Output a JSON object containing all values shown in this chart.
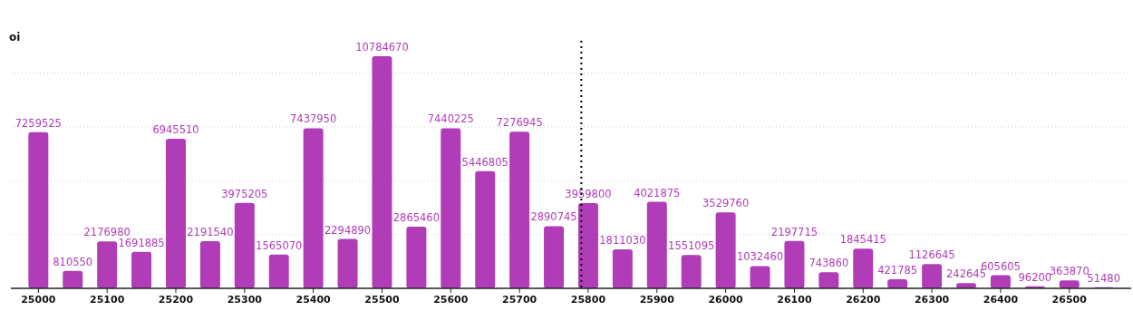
{
  "chart_data": {
    "type": "bar",
    "ylabel": "oi",
    "x": [
      25000,
      25050,
      25100,
      25150,
      25200,
      25250,
      25300,
      25350,
      25400,
      25450,
      25500,
      25550,
      25600,
      25650,
      25700,
      25750,
      25800,
      25850,
      25900,
      25950,
      26000,
      26050,
      26100,
      26150,
      26200,
      26250,
      26300,
      26350,
      26400,
      26450,
      26500,
      26550
    ],
    "values": [
      7259525,
      810550,
      2176980,
      1691885,
      6945510,
      2191540,
      3975205,
      1565070,
      7437950,
      2294890,
      10784670,
      2865460,
      7440225,
      5446805,
      7276945,
      2890745,
      3959800,
      1811030,
      4021875,
      1551095,
      3529760,
      1032460,
      2197715,
      743860,
      1845415,
      421785,
      1126645,
      242645,
      605605,
      96200,
      363870,
      51480
    ],
    "color": "#b03cb8",
    "data_labels": true,
    "xlim": [
      24960,
      26590
    ],
    "xticks": [
      25000,
      25100,
      25200,
      25300,
      25400,
      25500,
      25600,
      25700,
      25800,
      25900,
      26000,
      26100,
      26200,
      26300,
      26400,
      26500
    ],
    "ylim": [
      0,
      11500000
    ],
    "yticks": [
      {
        "value": 2500000,
        "label": null
      },
      {
        "value": 5000000,
        "label": null
      },
      {
        "value": 7500000,
        "label": null
      },
      {
        "value": 10000000,
        "label": null
      }
    ],
    "tick_labels": "x",
    "grid": "y",
    "ref_lines": [
      {
        "axis": "x",
        "value": 25790,
        "label": null,
        "color": "#000000",
        "line_style": "dotted"
      }
    ]
  }
}
